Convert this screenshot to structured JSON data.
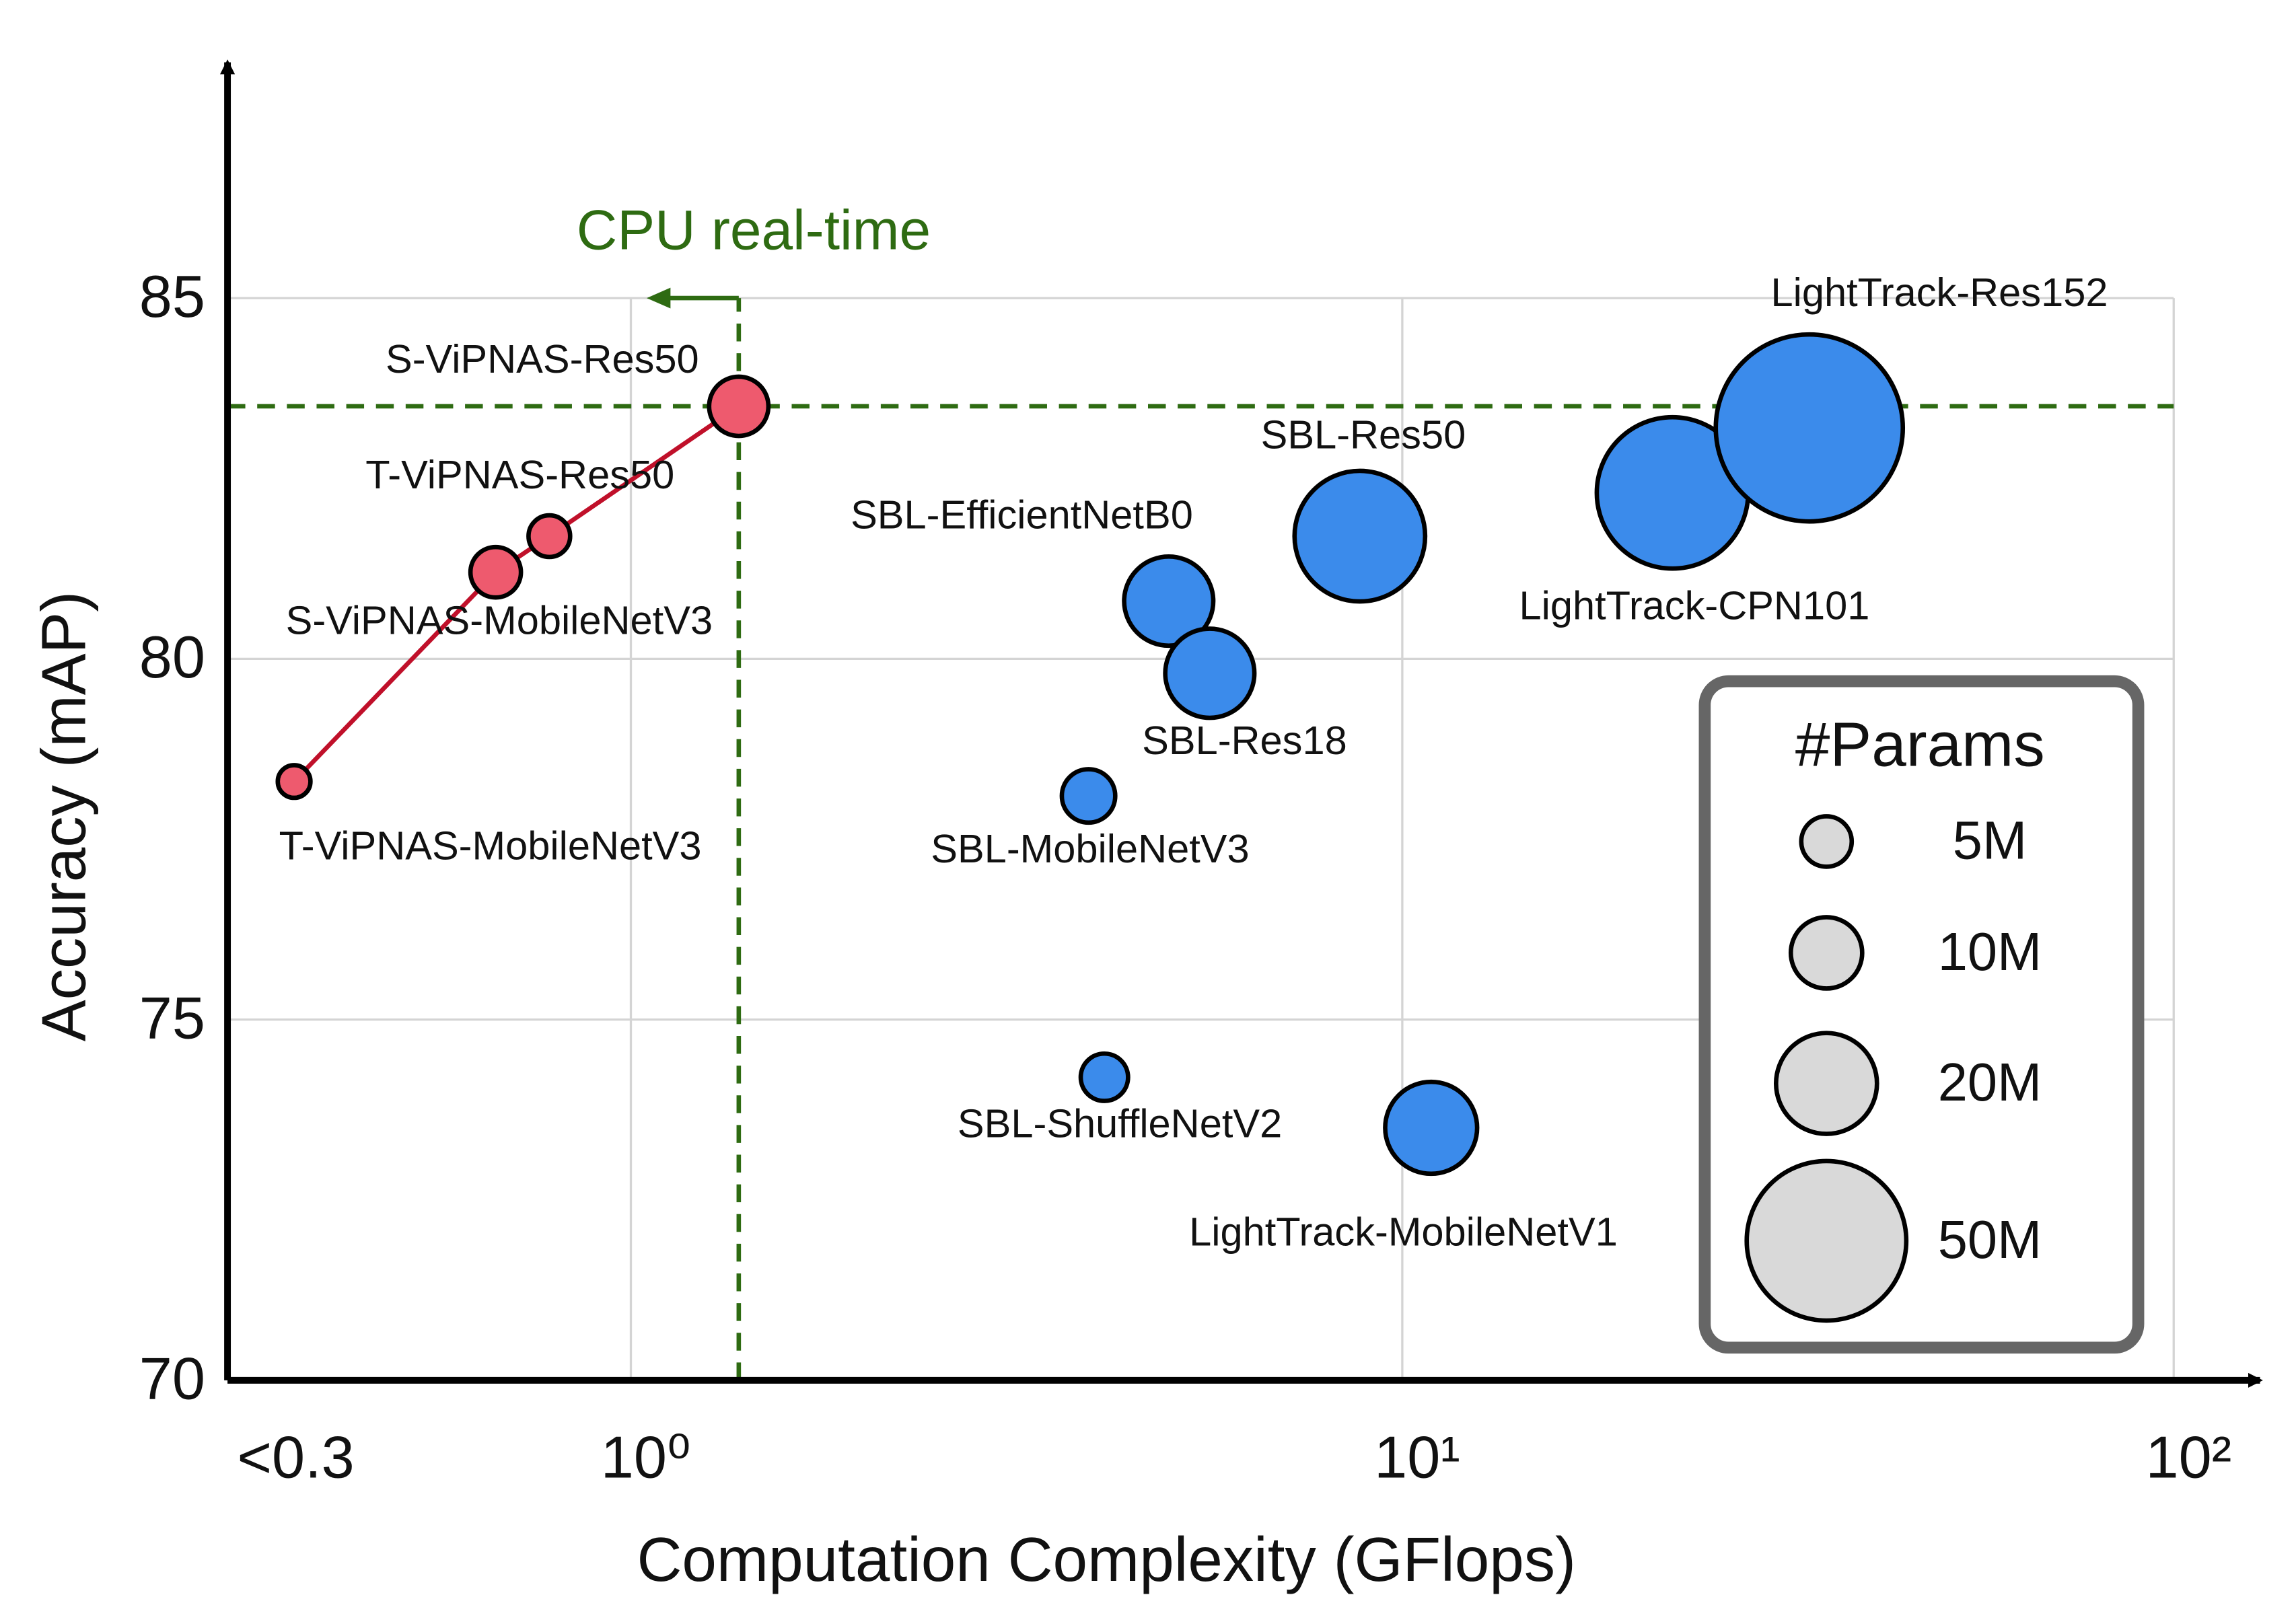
{
  "chart_data": {
    "type": "scatter",
    "x_label": "Computation Complexity (GFlops)",
    "y_label": "Accuracy (mAP)",
    "log_x": true,
    "grid": true,
    "xlim": [
      0.3,
      120
    ],
    "ylim": [
      70,
      88
    ],
    "xticks": [
      {
        "value": 0.3,
        "label": "<0.3"
      },
      {
        "value": 1,
        "label": "10⁰"
      },
      {
        "value": 10,
        "label": "10¹"
      },
      {
        "value": 100,
        "label": "10²"
      }
    ],
    "yticks": [
      70,
      75,
      80,
      85
    ],
    "series": [
      {
        "color": "#ee5a6e",
        "line_color": "#c0102a",
        "connected": true,
        "labels": [
          "T-ViPNAS-MobileNetV3",
          "S-ViPNAS-MobileNetV3",
          "T-ViPNAS-Res50",
          "S-ViPNAS-Res50"
        ],
        "x": [
          0.366,
          0.668,
          0.784,
          1.38
        ],
        "values": [
          78.3,
          81.2,
          81.7,
          83.5
        ],
        "sizes": [
          2.1,
          5.0,
          3.4,
          6.9
        ]
      },
      {
        "color": "#3b8beb",
        "connected": false,
        "labels": [
          "SBL-EfficientNetB0",
          "SBL-Res18",
          "SBL-MobileNetV3",
          "SBL-Res50",
          "LightTrack-CPN101",
          "LightTrack-Res152",
          "SBL-ShuffleNetV2",
          "LightTrack-MobileNetV1"
        ],
        "x": [
          4.98,
          5.63,
          3.92,
          8.81,
          22.4,
          33.7,
          4.11,
          10.9
        ],
        "values": [
          80.8,
          79.8,
          78.1,
          81.7,
          82.3,
          83.2,
          74.2,
          73.5
        ],
        "sizes": [
          15.6,
          15.6,
          5.6,
          33.5,
          45,
          68.7,
          4.4,
          16.6
        ]
      }
    ],
    "threshold": {
      "label": "CPU real-time",
      "x": 1.38,
      "y": 83.5,
      "color": "#2e6b12"
    },
    "size_legend": {
      "title": "#Params",
      "color": "#d9d9d9",
      "entries": [
        {
          "value": 5,
          "label": "5M"
        },
        {
          "value": 10,
          "label": "10M"
        },
        {
          "value": 20,
          "label": "20M"
        },
        {
          "value": 50,
          "label": "50M"
        }
      ]
    }
  }
}
